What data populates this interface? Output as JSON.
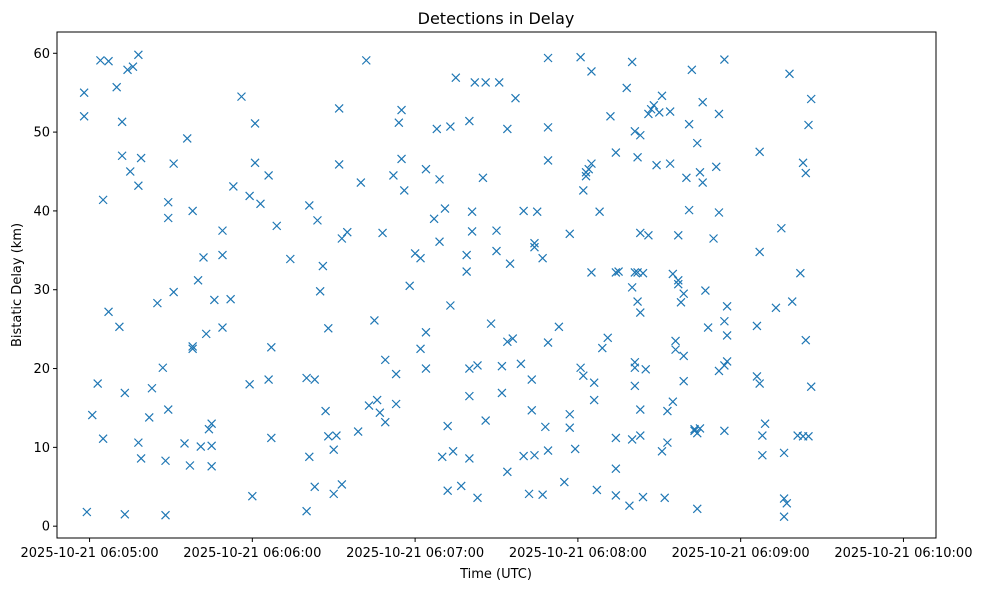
{
  "chart_data": {
    "type": "scatter",
    "title": "Detections in Delay",
    "xlabel": "Time (UTC)",
    "ylabel": "Bistatic Delay (km)",
    "marker": "x",
    "color": "#1f77b4",
    "grid": false,
    "xlim": [
      "2025-10-21 06:04:48",
      "2025-10-21 06:10:12"
    ],
    "ylim": [
      -1.5,
      62.7
    ],
    "x_ticks": [
      "2025-10-21 06:05:00",
      "2025-10-21 06:06:00",
      "2025-10-21 06:07:00",
      "2025-10-21 06:08:00",
      "2025-10-21 06:09:00",
      "2025-10-21 06:10:00"
    ],
    "y_ticks": [
      0,
      10,
      20,
      30,
      40,
      50,
      60
    ],
    "points": [
      [
        "2025-10-21 06:04:58",
        55.0
      ],
      [
        "2025-10-21 06:04:58",
        52.0
      ],
      [
        "2025-10-21 06:04:59",
        1.8
      ],
      [
        "2025-10-21 06:05:01",
        14.1
      ],
      [
        "2025-10-21 06:05:03",
        18.1
      ],
      [
        "2025-10-21 06:05:04",
        59.1
      ],
      [
        "2025-10-21 06:05:05",
        41.4
      ],
      [
        "2025-10-21 06:05:05",
        11.1
      ],
      [
        "2025-10-21 06:05:07",
        59.0
      ],
      [
        "2025-10-21 06:05:07",
        27.2
      ],
      [
        "2025-10-21 06:05:10",
        55.7
      ],
      [
        "2025-10-21 06:05:11",
        25.3
      ],
      [
        "2025-10-21 06:05:12",
        51.3
      ],
      [
        "2025-10-21 06:05:12",
        47.0
      ],
      [
        "2025-10-21 06:05:13",
        16.9
      ],
      [
        "2025-10-21 06:05:13",
        1.5
      ],
      [
        "2025-10-21 06:05:14",
        57.9
      ],
      [
        "2025-10-21 06:05:15",
        45.0
      ],
      [
        "2025-10-21 06:05:16",
        58.3
      ],
      [
        "2025-10-21 06:05:18",
        59.8
      ],
      [
        "2025-10-21 06:05:18",
        43.2
      ],
      [
        "2025-10-21 06:05:18",
        10.6
      ],
      [
        "2025-10-21 06:05:19",
        8.6
      ],
      [
        "2025-10-21 06:05:19",
        46.7
      ],
      [
        "2025-10-21 06:05:22",
        13.8
      ],
      [
        "2025-10-21 06:05:23",
        17.5
      ],
      [
        "2025-10-21 06:05:25",
        28.3
      ],
      [
        "2025-10-21 06:05:27",
        20.1
      ],
      [
        "2025-10-21 06:05:28",
        1.4
      ],
      [
        "2025-10-21 06:05:28",
        8.3
      ],
      [
        "2025-10-21 06:05:29",
        14.8
      ],
      [
        "2025-10-21 06:05:29",
        41.1
      ],
      [
        "2025-10-21 06:05:29",
        39.1
      ],
      [
        "2025-10-21 06:05:31",
        46.0
      ],
      [
        "2025-10-21 06:05:31",
        29.7
      ],
      [
        "2025-10-21 06:05:35",
        10.5
      ],
      [
        "2025-10-21 06:05:36",
        49.2
      ],
      [
        "2025-10-21 06:05:37",
        7.7
      ],
      [
        "2025-10-21 06:05:38",
        40.0
      ],
      [
        "2025-10-21 06:05:38",
        22.5
      ],
      [
        "2025-10-21 06:05:38",
        22.8
      ],
      [
        "2025-10-21 06:05:40",
        31.2
      ],
      [
        "2025-10-21 06:05:41",
        10.1
      ],
      [
        "2025-10-21 06:05:42",
        34.1
      ],
      [
        "2025-10-21 06:05:43",
        24.4
      ],
      [
        "2025-10-21 06:05:44",
        12.3
      ],
      [
        "2025-10-21 06:05:45",
        13.0
      ],
      [
        "2025-10-21 06:05:45",
        10.2
      ],
      [
        "2025-10-21 06:05:45",
        7.6
      ],
      [
        "2025-10-21 06:05:46",
        28.7
      ],
      [
        "2025-10-21 06:05:49",
        37.5
      ],
      [
        "2025-10-21 06:05:49",
        34.4
      ],
      [
        "2025-10-21 06:05:49",
        25.2
      ],
      [
        "2025-10-21 06:05:52",
        28.8
      ],
      [
        "2025-10-21 06:05:53",
        43.1
      ],
      [
        "2025-10-21 06:05:56",
        54.5
      ],
      [
        "2025-10-21 06:05:59",
        41.9
      ],
      [
        "2025-10-21 06:05:59",
        18.0
      ],
      [
        "2025-10-21 06:06:00",
        3.8
      ],
      [
        "2025-10-21 06:06:01",
        51.1
      ],
      [
        "2025-10-21 06:06:01",
        46.1
      ],
      [
        "2025-10-21 06:06:03",
        40.9
      ],
      [
        "2025-10-21 06:06:06",
        44.5
      ],
      [
        "2025-10-21 06:06:06",
        18.6
      ],
      [
        "2025-10-21 06:06:07",
        22.7
      ],
      [
        "2025-10-21 06:06:07",
        11.2
      ],
      [
        "2025-10-21 06:06:09",
        38.1
      ],
      [
        "2025-10-21 06:06:14",
        33.9
      ],
      [
        "2025-10-21 06:06:20",
        18.8
      ],
      [
        "2025-10-21 06:06:20",
        1.9
      ],
      [
        "2025-10-21 06:06:21",
        40.7
      ],
      [
        "2025-10-21 06:06:21",
        8.8
      ],
      [
        "2025-10-21 06:06:23",
        18.6
      ],
      [
        "2025-10-21 06:06:23",
        5.0
      ],
      [
        "2025-10-21 06:06:24",
        38.8
      ],
      [
        "2025-10-21 06:06:25",
        29.8
      ],
      [
        "2025-10-21 06:06:26",
        33.0
      ],
      [
        "2025-10-21 06:06:27",
        14.6
      ],
      [
        "2025-10-21 06:06:28",
        25.1
      ],
      [
        "2025-10-21 06:06:28",
        11.4
      ],
      [
        "2025-10-21 06:06:30",
        9.7
      ],
      [
        "2025-10-21 06:06:30",
        4.1
      ],
      [
        "2025-10-21 06:06:31",
        11.5
      ],
      [
        "2025-10-21 06:06:32",
        53.0
      ],
      [
        "2025-10-21 06:06:32",
        45.9
      ],
      [
        "2025-10-21 06:06:33",
        36.5
      ],
      [
        "2025-10-21 06:06:33",
        5.3
      ],
      [
        "2025-10-21 06:06:35",
        37.3
      ],
      [
        "2025-10-21 06:06:39",
        12.0
      ],
      [
        "2025-10-21 06:06:40",
        43.6
      ],
      [
        "2025-10-21 06:06:42",
        59.1
      ],
      [
        "2025-10-21 06:06:43",
        15.3
      ],
      [
        "2025-10-21 06:06:45",
        26.1
      ],
      [
        "2025-10-21 06:06:46",
        16.0
      ],
      [
        "2025-10-21 06:06:47",
        14.4
      ],
      [
        "2025-10-21 06:06:48",
        37.2
      ],
      [
        "2025-10-21 06:06:49",
        13.2
      ],
      [
        "2025-10-21 06:06:49",
        21.1
      ],
      [
        "2025-10-21 06:06:52",
        44.5
      ],
      [
        "2025-10-21 06:06:53",
        19.3
      ],
      [
        "2025-10-21 06:06:53",
        15.5
      ],
      [
        "2025-10-21 06:06:54",
        51.2
      ],
      [
        "2025-10-21 06:06:55",
        52.8
      ],
      [
        "2025-10-21 06:06:55",
        46.6
      ],
      [
        "2025-10-21 06:06:56",
        42.6
      ],
      [
        "2025-10-21 06:06:58",
        30.5
      ],
      [
        "2025-10-21 06:07:00",
        34.6
      ],
      [
        "2025-10-21 06:07:02",
        34.0
      ],
      [
        "2025-10-21 06:07:02",
        22.5
      ],
      [
        "2025-10-21 06:07:04",
        45.3
      ],
      [
        "2025-10-21 06:07:04",
        24.6
      ],
      [
        "2025-10-21 06:07:04",
        20.0
      ],
      [
        "2025-10-21 06:07:07",
        39.0
      ],
      [
        "2025-10-21 06:07:08",
        50.4
      ],
      [
        "2025-10-21 06:07:09",
        44.0
      ],
      [
        "2025-10-21 06:07:09",
        36.1
      ],
      [
        "2025-10-21 06:07:10",
        8.8
      ],
      [
        "2025-10-21 06:07:11",
        40.3
      ],
      [
        "2025-10-21 06:07:12",
        12.7
      ],
      [
        "2025-10-21 06:07:12",
        4.5
      ],
      [
        "2025-10-21 06:07:13",
        50.7
      ],
      [
        "2025-10-21 06:07:13",
        28.0
      ],
      [
        "2025-10-21 06:07:14",
        9.5
      ],
      [
        "2025-10-21 06:07:15",
        56.9
      ],
      [
        "2025-10-21 06:07:17",
        5.1
      ],
      [
        "2025-10-21 06:07:19",
        34.4
      ],
      [
        "2025-10-21 06:07:19",
        32.3
      ],
      [
        "2025-10-21 06:07:20",
        51.4
      ],
      [
        "2025-10-21 06:07:20",
        20.0
      ],
      [
        "2025-10-21 06:07:20",
        16.5
      ],
      [
        "2025-10-21 06:07:20",
        8.6
      ],
      [
        "2025-10-21 06:07:21",
        39.9
      ],
      [
        "2025-10-21 06:07:21",
        37.4
      ],
      [
        "2025-10-21 06:07:22",
        56.3
      ],
      [
        "2025-10-21 06:07:23",
        20.4
      ],
      [
        "2025-10-21 06:07:23",
        3.6
      ],
      [
        "2025-10-21 06:07:25",
        44.2
      ],
      [
        "2025-10-21 06:07:26",
        56.3
      ],
      [
        "2025-10-21 06:07:26",
        13.4
      ],
      [
        "2025-10-21 06:07:28",
        25.7
      ],
      [
        "2025-10-21 06:07:30",
        37.5
      ],
      [
        "2025-10-21 06:07:30",
        34.9
      ],
      [
        "2025-10-21 06:07:31",
        56.3
      ],
      [
        "2025-10-21 06:07:32",
        20.3
      ],
      [
        "2025-10-21 06:07:32",
        16.9
      ],
      [
        "2025-10-21 06:07:34",
        50.4
      ],
      [
        "2025-10-21 06:07:34",
        23.4
      ],
      [
        "2025-10-21 06:07:34",
        6.9
      ],
      [
        "2025-10-21 06:07:35",
        33.3
      ],
      [
        "2025-10-21 06:07:36",
        23.8
      ],
      [
        "2025-10-21 06:07:37",
        54.3
      ],
      [
        "2025-10-21 06:07:39",
        20.6
      ],
      [
        "2025-10-21 06:07:40",
        40.0
      ],
      [
        "2025-10-21 06:07:40",
        8.9
      ],
      [
        "2025-10-21 06:07:42",
        4.1
      ],
      [
        "2025-10-21 06:07:43",
        18.6
      ],
      [
        "2025-10-21 06:07:43",
        14.7
      ],
      [
        "2025-10-21 06:07:44",
        35.9
      ],
      [
        "2025-10-21 06:07:44",
        35.4
      ],
      [
        "2025-10-21 06:07:44",
        9.0
      ],
      [
        "2025-10-21 06:07:45",
        39.9
      ],
      [
        "2025-10-21 06:07:47",
        34.0
      ],
      [
        "2025-10-21 06:07:47",
        4.0
      ],
      [
        "2025-10-21 06:07:48",
        12.6
      ],
      [
        "2025-10-21 06:07:49",
        59.4
      ],
      [
        "2025-10-21 06:07:49",
        50.6
      ],
      [
        "2025-10-21 06:07:49",
        46.4
      ],
      [
        "2025-10-21 06:07:49",
        23.3
      ],
      [
        "2025-10-21 06:07:49",
        9.6
      ],
      [
        "2025-10-21 06:07:53",
        25.3
      ],
      [
        "2025-10-21 06:07:55",
        5.6
      ],
      [
        "2025-10-21 06:07:57",
        37.1
      ],
      [
        "2025-10-21 06:07:57",
        14.2
      ],
      [
        "2025-10-21 06:07:57",
        12.5
      ],
      [
        "2025-10-21 06:07:59",
        9.8
      ],
      [
        "2025-10-21 06:08:01",
        20.1
      ],
      [
        "2025-10-21 06:08:01",
        59.5
      ],
      [
        "2025-10-21 06:08:02",
        19.1
      ],
      [
        "2025-10-21 06:08:02",
        42.6
      ],
      [
        "2025-10-21 06:08:03",
        44.4
      ],
      [
        "2025-10-21 06:08:03",
        44.9
      ],
      [
        "2025-10-21 06:08:04",
        45.3
      ],
      [
        "2025-10-21 06:08:05",
        57.7
      ],
      [
        "2025-10-21 06:08:05",
        46.0
      ],
      [
        "2025-10-21 06:08:05",
        32.2
      ],
      [
        "2025-10-21 06:08:06",
        16.0
      ],
      [
        "2025-10-21 06:08:06",
        18.2
      ],
      [
        "2025-10-21 06:08:07",
        4.6
      ],
      [
        "2025-10-21 06:08:08",
        39.9
      ],
      [
        "2025-10-21 06:08:09",
        22.6
      ],
      [
        "2025-10-21 06:08:11",
        23.9
      ],
      [
        "2025-10-21 06:08:12",
        52.0
      ],
      [
        "2025-10-21 06:08:14",
        47.4
      ],
      [
        "2025-10-21 06:08:14",
        32.2
      ],
      [
        "2025-10-21 06:08:14",
        11.2
      ],
      [
        "2025-10-21 06:08:14",
        7.3
      ],
      [
        "2025-10-21 06:08:14",
        3.9
      ],
      [
        "2025-10-21 06:08:15",
        32.3
      ],
      [
        "2025-10-21 06:08:18",
        55.6
      ],
      [
        "2025-10-21 06:08:19",
        2.6
      ],
      [
        "2025-10-21 06:08:20",
        58.9
      ],
      [
        "2025-10-21 06:08:20",
        30.3
      ],
      [
        "2025-10-21 06:08:20",
        11.0
      ],
      [
        "2025-10-21 06:08:21",
        32.2
      ],
      [
        "2025-10-21 06:08:21",
        20.8
      ],
      [
        "2025-10-21 06:08:21",
        20.1
      ],
      [
        "2025-10-21 06:08:21",
        17.8
      ],
      [
        "2025-10-21 06:08:21",
        50.1
      ],
      [
        "2025-10-21 06:08:22",
        46.8
      ],
      [
        "2025-10-21 06:08:22",
        32.2
      ],
      [
        "2025-10-21 06:08:22",
        28.5
      ],
      [
        "2025-10-21 06:08:23",
        49.6
      ],
      [
        "2025-10-21 06:08:23",
        37.2
      ],
      [
        "2025-10-21 06:08:23",
        27.1
      ],
      [
        "2025-10-21 06:08:23",
        14.8
      ],
      [
        "2025-10-21 06:08:23",
        11.5
      ],
      [
        "2025-10-21 06:08:24",
        32.1
      ],
      [
        "2025-10-21 06:08:24",
        3.7
      ],
      [
        "2025-10-21 06:08:25",
        19.9
      ],
      [
        "2025-10-21 06:08:26",
        52.3
      ],
      [
        "2025-10-21 06:08:26",
        36.9
      ],
      [
        "2025-10-21 06:08:27",
        52.9
      ],
      [
        "2025-10-21 06:08:28",
        53.4
      ],
      [
        "2025-10-21 06:08:29",
        45.8
      ],
      [
        "2025-10-21 06:08:30",
        52.5
      ],
      [
        "2025-10-21 06:08:31",
        54.6
      ],
      [
        "2025-10-21 06:08:31",
        9.5
      ],
      [
        "2025-10-21 06:08:32",
        3.6
      ],
      [
        "2025-10-21 06:08:33",
        10.6
      ],
      [
        "2025-10-21 06:08:33",
        14.6
      ],
      [
        "2025-10-21 06:08:34",
        46.0
      ],
      [
        "2025-10-21 06:08:34",
        52.6
      ],
      [
        "2025-10-21 06:08:35",
        32.0
      ],
      [
        "2025-10-21 06:08:35",
        15.8
      ],
      [
        "2025-10-21 06:08:36",
        23.5
      ],
      [
        "2025-10-21 06:08:36",
        22.4
      ],
      [
        "2025-10-21 06:08:37",
        31.2
      ],
      [
        "2025-10-21 06:08:37",
        30.7
      ],
      [
        "2025-10-21 06:08:37",
        36.9
      ],
      [
        "2025-10-21 06:08:38",
        28.4
      ],
      [
        "2025-10-21 06:08:39",
        21.6
      ],
      [
        "2025-10-21 06:08:39",
        18.4
      ],
      [
        "2025-10-21 06:08:39",
        29.5
      ],
      [
        "2025-10-21 06:08:40",
        44.2
      ],
      [
        "2025-10-21 06:08:41",
        51.0
      ],
      [
        "2025-10-21 06:08:41",
        40.1
      ],
      [
        "2025-10-21 06:08:42",
        57.9
      ],
      [
        "2025-10-21 06:08:43",
        12.1
      ],
      [
        "2025-10-21 06:08:43",
        12.3
      ],
      [
        "2025-10-21 06:08:44",
        11.8
      ],
      [
        "2025-10-21 06:08:44",
        48.6
      ],
      [
        "2025-10-21 06:08:44",
        2.2
      ],
      [
        "2025-10-21 06:08:45",
        12.4
      ],
      [
        "2025-10-21 06:08:45",
        44.9
      ],
      [
        "2025-10-21 06:08:46",
        53.8
      ],
      [
        "2025-10-21 06:08:46",
        43.6
      ],
      [
        "2025-10-21 06:08:47",
        29.9
      ],
      [
        "2025-10-21 06:08:48",
        25.2
      ],
      [
        "2025-10-21 06:08:50",
        36.5
      ],
      [
        "2025-10-21 06:08:51",
        45.6
      ],
      [
        "2025-10-21 06:08:52",
        39.8
      ],
      [
        "2025-10-21 06:08:52",
        52.3
      ],
      [
        "2025-10-21 06:08:52",
        19.7
      ],
      [
        "2025-10-21 06:08:54",
        59.2
      ],
      [
        "2025-10-21 06:08:54",
        26.0
      ],
      [
        "2025-10-21 06:08:54",
        12.1
      ],
      [
        "2025-10-21 06:08:54",
        20.4
      ],
      [
        "2025-10-21 06:08:55",
        27.9
      ],
      [
        "2025-10-21 06:08:55",
        24.2
      ],
      [
        "2025-10-21 06:08:55",
        20.9
      ],
      [
        "2025-10-21 06:09:06",
        25.4
      ],
      [
        "2025-10-21 06:09:06",
        19.0
      ],
      [
        "2025-10-21 06:09:07",
        47.5
      ],
      [
        "2025-10-21 06:09:07",
        34.8
      ],
      [
        "2025-10-21 06:09:07",
        18.1
      ],
      [
        "2025-10-21 06:09:08",
        11.5
      ],
      [
        "2025-10-21 06:09:08",
        9.0
      ],
      [
        "2025-10-21 06:09:09",
        13.0
      ],
      [
        "2025-10-21 06:09:13",
        27.7
      ],
      [
        "2025-10-21 06:09:15",
        37.8
      ],
      [
        "2025-10-21 06:09:16",
        9.3
      ],
      [
        "2025-10-21 06:09:16",
        3.5
      ],
      [
        "2025-10-21 06:09:16",
        1.2
      ],
      [
        "2025-10-21 06:09:17",
        2.9
      ],
      [
        "2025-10-21 06:09:18",
        57.4
      ],
      [
        "2025-10-21 06:09:19",
        28.5
      ],
      [
        "2025-10-21 06:09:21",
        11.5
      ],
      [
        "2025-10-21 06:09:22",
        32.1
      ],
      [
        "2025-10-21 06:09:23",
        46.1
      ],
      [
        "2025-10-21 06:09:23",
        11.4
      ],
      [
        "2025-10-21 06:09:24",
        44.8
      ],
      [
        "2025-10-21 06:09:24",
        23.6
      ],
      [
        "2025-10-21 06:09:25",
        50.9
      ],
      [
        "2025-10-21 06:09:25",
        11.4
      ],
      [
        "2025-10-21 06:09:26",
        54.2
      ],
      [
        "2025-10-21 06:09:26",
        17.7
      ]
    ]
  }
}
